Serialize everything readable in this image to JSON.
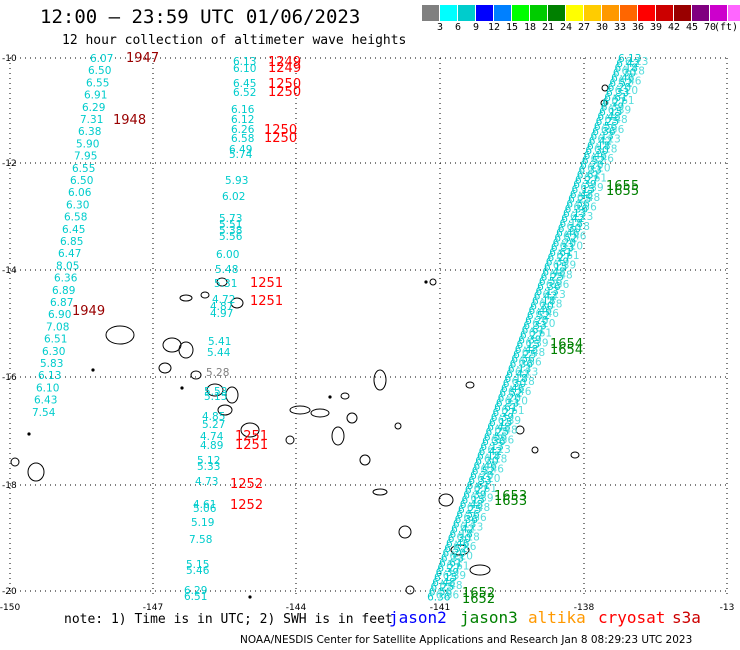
{
  "header": {
    "title": "12:00 — 23:59 UTC 01/06/2023",
    "subtitle": "12 hour collection of altimeter wave heights"
  },
  "legend": {
    "colors": [
      "#808080",
      "#00ffff",
      "#00cccc",
      "#0000ff",
      "#0080ff",
      "#00ff00",
      "#00cc00",
      "#008000",
      "#ffff00",
      "#ffcc00",
      "#ff9900",
      "#ff6600",
      "#ff0000",
      "#cc0000",
      "#990000",
      "#800080",
      "#cc00cc",
      "#ff66ff",
      "#000000"
    ],
    "labels": [
      "3",
      "6",
      "9",
      "12",
      "15",
      "18",
      "21",
      "24",
      "27",
      "30",
      "33",
      "36",
      "39",
      "42",
      "45",
      "70"
    ],
    "unit": "(ft)"
  },
  "axes": {
    "lat_labels": [
      "-10",
      "-12",
      "-14",
      "-16",
      "-18",
      "-20"
    ],
    "lon_labels": [
      "-150",
      "-147",
      "-144",
      "-141",
      "-138",
      "-13"
    ]
  },
  "observations": {
    "track1_swh": [
      "6.07",
      "6.50",
      "6.55",
      "6.91",
      "6.29",
      "7.31",
      "6.38",
      "5.90",
      "7.95",
      "6.55",
      "6.50",
      "6.06",
      "6.30",
      "6.58",
      "6.45",
      "6.85",
      "6.47",
      "8.05",
      "6.36",
      "6.89",
      "6.87",
      "6.90",
      "7.08",
      "6.51",
      "6.30",
      "5.83",
      "6.13",
      "6.10",
      "6.43",
      "7.54"
    ],
    "track1_times": [
      "1947",
      "1948",
      "1949"
    ],
    "track2_swh": [
      "6.13",
      "6.10",
      "6.45",
      "6.52",
      "6.16",
      "6.12",
      "6.26",
      "6.58",
      "6.49",
      "5.74",
      "5.93",
      "6.02",
      "5.73",
      "5.51",
      "5.38",
      "5.56",
      "6.00",
      "5.48",
      "5.31",
      "4.72",
      "4.87",
      "4.97",
      "5.41",
      "5.44",
      "5.28",
      "5.53",
      "5.15",
      "4.85",
      "5.27",
      "4.74",
      "4.89",
      "5.12",
      "5.33",
      "4.73",
      "4.61",
      "5.06",
      "5.19",
      "7.58",
      "5.15",
      "5.46",
      "6.29",
      "6.51"
    ],
    "track2_times": [
      "1249",
      "1249",
      "1250",
      "1250",
      "1250",
      "1250",
      "1251",
      "1251",
      "1251",
      "1251",
      "1252",
      "1252"
    ],
    "track3_times": [
      "1655",
      "1655",
      "1654",
      "1654",
      "1653",
      "1653",
      "1652",
      "1652"
    ]
  },
  "satellites": [
    {
      "name": "jason2",
      "color": "#0000ff"
    },
    {
      "name": "jason3",
      "color": "#008000"
    },
    {
      "name": "altika",
      "color": "#ff9900"
    },
    {
      "name": "cryosat",
      "color": "#ff0000"
    },
    {
      "name": "s3a",
      "color": "#cc0000"
    }
  ],
  "note": "note: 1) Time is in UTC; 2) SWH is in feet",
  "footer": "NOAA/NESDIS Center for Satellite Applications and Research   Jan  8 08:29:23 UTC 2023"
}
